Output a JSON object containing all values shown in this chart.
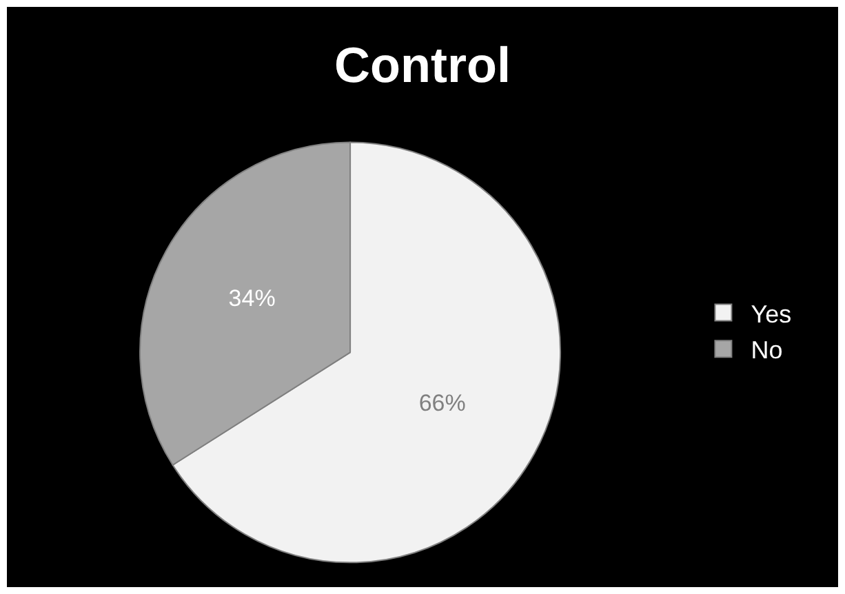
{
  "chart_data": {
    "type": "pie",
    "title": "Control",
    "categories": [
      "Yes",
      "No"
    ],
    "values": [
      66,
      34
    ],
    "colors": [
      "#f2f2f2",
      "#a6a6a6"
    ],
    "value_labels": [
      "66%",
      "34%"
    ],
    "legend": "right"
  }
}
